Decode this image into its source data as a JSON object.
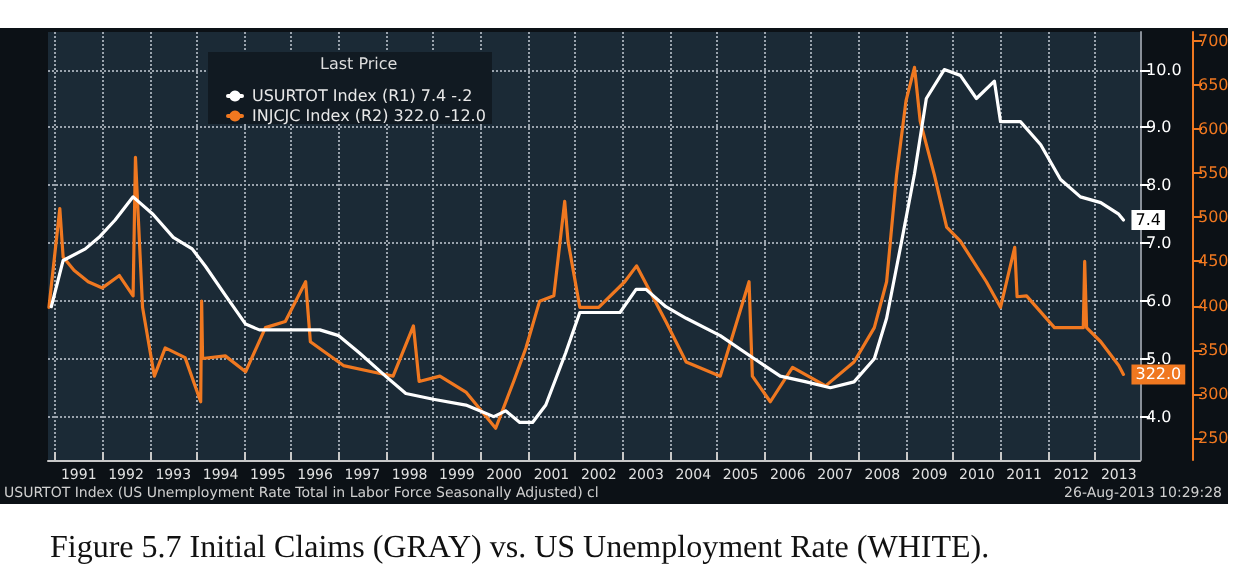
{
  "chart_data": {
    "type": "line",
    "title": "Figure 5.7 Initial Claims (GRAY) vs. US Unemployment Rate (WHITE).",
    "legend_title": "Last Price",
    "legend": "top left",
    "grid": true,
    "marker": "none",
    "line_style": "solid",
    "annotations": [
      "USURTOT Index (US Unemployment Rate Total in Labor Force Seasonally Adjusted) cl",
      "26-Aug-2013 10:29:28"
    ],
    "xlim": [
      1990.85,
      2013.95
    ],
    "xticks": [
      {
        "value": 1991,
        "label": null
      },
      {
        "value": 1992,
        "label": null
      },
      {
        "value": 1993,
        "label": null
      },
      {
        "value": 1994,
        "label": null
      },
      {
        "value": 1995,
        "label": null
      },
      {
        "value": 1996,
        "label": null
      },
      {
        "value": 1997,
        "label": null
      },
      {
        "value": 1998,
        "label": null
      },
      {
        "value": 1999,
        "label": null
      },
      {
        "value": 2000,
        "label": null
      },
      {
        "value": 2001,
        "label": null
      },
      {
        "value": 2002,
        "label": null
      },
      {
        "value": 2003,
        "label": null
      },
      {
        "value": 2004,
        "label": null
      },
      {
        "value": 2005,
        "label": null
      },
      {
        "value": 2006,
        "label": null
      },
      {
        "value": 2007,
        "label": null
      },
      {
        "value": 2008,
        "label": null
      },
      {
        "value": 2009,
        "label": null
      },
      {
        "value": 2010,
        "label": null
      },
      {
        "value": 2011,
        "label": null
      },
      {
        "value": 2012,
        "label": null
      },
      {
        "value": 2013,
        "label": null
      },
      {
        "value": 1991.5,
        "label": "1991"
      },
      {
        "value": 1992.5,
        "label": "1992"
      },
      {
        "value": 1993.5,
        "label": "1993"
      },
      {
        "value": 1994.5,
        "label": "1994"
      },
      {
        "value": 1995.5,
        "label": "1995"
      },
      {
        "value": 1996.5,
        "label": "1996"
      },
      {
        "value": 1997.5,
        "label": "1997"
      },
      {
        "value": 1998.5,
        "label": "1998"
      },
      {
        "value": 1999.5,
        "label": "1999"
      },
      {
        "value": 2000.5,
        "label": "2000"
      },
      {
        "value": 2001.5,
        "label": "2001"
      },
      {
        "value": 2002.5,
        "label": "2002"
      },
      {
        "value": 2003.5,
        "label": "2003"
      },
      {
        "value": 2004.5,
        "label": "2004"
      },
      {
        "value": 2005.5,
        "label": "2005"
      },
      {
        "value": 2006.5,
        "label": "2006"
      },
      {
        "value": 2007.5,
        "label": "2007"
      },
      {
        "value": 2008.5,
        "label": "2008"
      },
      {
        "value": 2009.5,
        "label": "2009"
      },
      {
        "value": 2010.5,
        "label": "2010"
      },
      {
        "value": 2011.5,
        "label": "2011"
      },
      {
        "value": 2012.5,
        "label": "2012"
      },
      {
        "value": 2013.5,
        "label": "2013"
      }
    ],
    "ylim": [
      3.25,
      10.65
    ],
    "yticks": [
      {
        "value": 4,
        "label": "4.0"
      },
      {
        "value": 5,
        "label": "5.0"
      },
      {
        "value": 6,
        "label": "6.0"
      },
      {
        "value": 7,
        "label": "7.0"
      },
      {
        "value": 8,
        "label": "8.0"
      },
      {
        "value": 9,
        "label": "9.0"
      },
      {
        "value": 10,
        "label": "10.0"
      }
    ],
    "y2lim": [
      225,
      710
    ],
    "y2ticks": [
      250,
      300,
      350,
      400,
      450,
      500,
      550,
      600,
      650,
      700
    ],
    "series": [
      {
        "name": "USURTOT Index (R1) 7.4 -.2",
        "color": "#ffffff",
        "x": [
          1990.92,
          1991.17,
          1991.64,
          1991.93,
          1992.27,
          1992.65,
          1993.07,
          1993.5,
          1993.9,
          1994.18,
          1994.6,
          1995.03,
          1995.32,
          1995.75,
          1996.6,
          1997.0,
          1997.44,
          1997.99,
          1998.42,
          1999.0,
          1999.69,
          2000.28,
          2000.53,
          2000.83,
          2001.1,
          2001.38,
          2001.8,
          2002.1,
          2002.4,
          2002.95,
          2003.29,
          2003.5,
          2003.92,
          2004.35,
          2005.07,
          2005.79,
          2006.34,
          2006.89,
          2007.4,
          2007.9,
          2008.33,
          2008.59,
          2008.9,
          2009.18,
          2009.43,
          2009.81,
          2010.15,
          2010.49,
          2010.87,
          2011.0,
          2011.42,
          2011.85,
          2012.27,
          2012.69,
          2013.12,
          2013.5,
          2013.6
        ],
        "values": [
          5.9,
          6.7,
          6.9,
          7.1,
          7.4,
          7.8,
          7.5,
          7.1,
          6.9,
          6.6,
          6.1,
          5.6,
          5.5,
          5.5,
          5.5,
          5.4,
          5.1,
          4.7,
          4.4,
          4.3,
          4.2,
          4.0,
          4.1,
          3.9,
          3.9,
          4.2,
          5.1,
          5.8,
          5.8,
          5.8,
          6.2,
          6.2,
          5.9,
          5.7,
          5.4,
          5.0,
          4.7,
          4.6,
          4.5,
          4.6,
          5.0,
          5.7,
          7.0,
          8.2,
          9.5,
          10.0,
          9.9,
          9.5,
          9.8,
          9.1,
          9.1,
          8.7,
          8.1,
          7.8,
          7.7,
          7.5,
          7.4
        ],
        "value_labels": [
          null,
          null,
          null,
          null,
          null,
          null,
          null,
          null,
          null,
          null,
          null,
          null,
          null,
          null,
          null,
          null,
          null,
          null,
          null,
          null,
          null,
          null,
          null,
          null,
          null,
          null,
          null,
          null,
          null,
          null,
          null,
          null,
          null,
          null,
          null,
          null,
          null,
          null,
          null,
          null,
          null,
          null,
          null,
          null,
          null,
          null,
          null,
          null,
          null,
          null,
          null,
          null,
          null,
          null,
          null,
          null,
          "7.4"
        ]
      },
      {
        "name": "INJCJC Index (R2) 322.0 -12.0",
        "color": "#f07820",
        "axis": "y2",
        "x": [
          1990.87,
          1991.1,
          1991.17,
          1991.4,
          1991.7,
          1992.0,
          1992.36,
          1992.65,
          1992.7,
          1992.85,
          1993.1,
          1993.33,
          1993.75,
          1994.08,
          1994.1,
          1994.12,
          1994.6,
          1995.03,
          1995.45,
          1995.87,
          1996.3,
          1996.4,
          1997.1,
          1997.7,
          1998.15,
          1998.58,
          1998.7,
          1999.14,
          1999.69,
          2000.32,
          2000.7,
          2000.96,
          2001.25,
          2001.55,
          2001.78,
          2001.85,
          2002.1,
          2002.5,
          2003.05,
          2003.3,
          2003.92,
          2004.35,
          2005.07,
          2005.68,
          2005.75,
          2006.13,
          2006.6,
          2007.3,
          2007.9,
          2008.33,
          2008.59,
          2008.8,
          2009.0,
          2009.18,
          2009.3,
          2009.6,
          2009.86,
          2010.15,
          2010.7,
          2011.0,
          2011.3,
          2011.35,
          2011.55,
          2012.14,
          2012.75,
          2012.78,
          2012.82,
          2013.12,
          2013.5,
          2013.6
        ],
        "values": [
          398,
          510,
          455,
          440,
          427,
          420,
          434,
          411,
          568,
          398,
          320,
          352,
          341,
          291,
          405,
          340,
          343,
          325,
          375,
          382,
          427,
          359,
          332,
          325,
          320,
          377,
          314,
          320,
          302,
          261,
          314,
          352,
          405,
          411,
          518,
          473,
          398,
          398,
          427,
          445,
          382,
          336,
          320,
          427,
          320,
          291,
          330,
          309,
          336,
          375,
          427,
          548,
          632,
          670,
          609,
          548,
          489,
          473,
          427,
          398,
          466,
          410,
          411,
          375,
          375,
          450,
          375,
          359,
          332,
          322
        ],
        "value_labels": [
          null,
          null,
          null,
          null,
          null,
          null,
          null,
          null,
          null,
          null,
          null,
          null,
          null,
          null,
          null,
          null,
          null,
          null,
          null,
          null,
          null,
          null,
          null,
          null,
          null,
          null,
          null,
          null,
          null,
          null,
          null,
          null,
          null,
          null,
          null,
          null,
          null,
          null,
          null,
          null,
          null,
          null,
          null,
          null,
          null,
          null,
          null,
          null,
          null,
          null,
          null,
          null,
          null,
          null,
          null,
          null,
          null,
          null,
          null,
          null,
          null,
          null,
          null,
          null,
          null,
          null,
          null,
          null,
          null,
          "322.0"
        ]
      }
    ]
  }
}
